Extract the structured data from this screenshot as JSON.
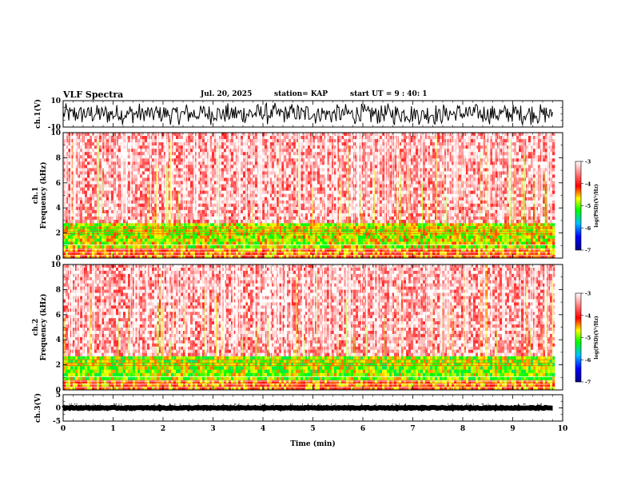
{
  "header": {
    "title": "VLF Spectra",
    "date": "Jul. 20, 2025",
    "station": "station= KAP",
    "start_ut": "start UT =  9 : 40: 1"
  },
  "colors": {
    "spectrogram_background": "#ff3b30",
    "scale_bottom": "#000080",
    "scale_top": "#ffffff",
    "trace": "#000000"
  },
  "chart_data": [
    {
      "type": "line",
      "panel": "ch1-waveform",
      "ylabel": "ch.1(V)",
      "ylim": [
        -10,
        10
      ],
      "y_ticks": [
        "10",
        "-10"
      ],
      "x_range_min": [
        0,
        10
      ],
      "data_end_min": 9.8,
      "description": "noisy waveform, amplitude about 8 V"
    },
    {
      "type": "heatmap",
      "panel": "ch1-spectrogram",
      "ylabel": "ch.1\nFrequency (kHz)",
      "ylim": [
        0,
        10
      ],
      "y_ticks": [
        "0",
        "2",
        "4",
        "6",
        "8",
        "10"
      ],
      "x_range_min": [
        0,
        10
      ],
      "data_end_min": 9.8,
      "colorbar": {
        "label": "log(PSD)(V²/Hz)",
        "range": [
          -7,
          -3
        ],
        "ticks": [
          "-3",
          "-4",
          "-5",
          "-6",
          "-7"
        ]
      },
      "bands": [
        {
          "from_khz": 0.0,
          "to_khz": 0.8,
          "level": -4.3
        },
        {
          "from_khz": 0.8,
          "to_khz": 2.8,
          "level": -4.8
        },
        {
          "from_khz": 2.8,
          "to_khz": 10.0,
          "level": -3.4
        }
      ]
    },
    {
      "type": "heatmap",
      "panel": "ch2-spectrogram",
      "ylabel": "ch.2\nFrequency (kHz)",
      "ylim": [
        0,
        10
      ],
      "y_ticks": [
        "0",
        "2",
        "4",
        "6",
        "8",
        "10"
      ],
      "x_range_min": [
        0,
        10
      ],
      "data_end_min": 9.8,
      "colorbar": {
        "label": "log(PSD)(V²/Hz)",
        "range": [
          -7,
          -3
        ],
        "ticks": [
          "-3",
          "-4",
          "-5",
          "-6",
          "-7"
        ]
      },
      "bands": [
        {
          "from_khz": 0.0,
          "to_khz": 0.8,
          "level": -4.3
        },
        {
          "from_khz": 0.8,
          "to_khz": 2.7,
          "level": -4.9
        },
        {
          "from_khz": 2.7,
          "to_khz": 10.0,
          "level": -3.4
        }
      ]
    },
    {
      "type": "line",
      "panel": "ch3-waveform",
      "ylabel": "ch.3(V)",
      "ylim": [
        -5,
        5
      ],
      "y_ticks": [
        "5",
        "0",
        "-5"
      ],
      "x_range_min": [
        0,
        10
      ],
      "data_end_min": 9.8,
      "level_v": 0,
      "description": "thick near-constant trace around 0 V"
    }
  ],
  "xaxis": {
    "label": "Time (min)",
    "ticks": [
      "0",
      "1",
      "2",
      "3",
      "4",
      "5",
      "6",
      "7",
      "8",
      "9",
      "10"
    ]
  }
}
